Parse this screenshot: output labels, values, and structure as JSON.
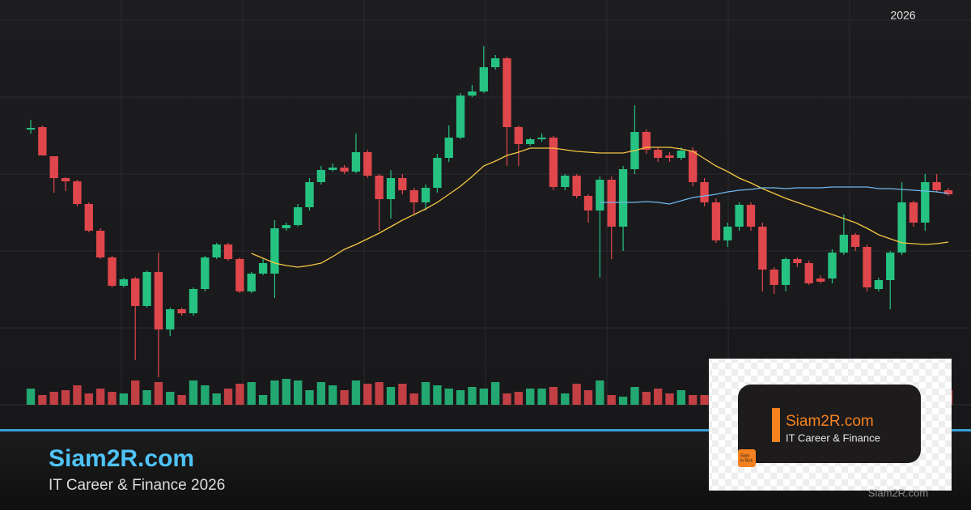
{
  "header": {
    "year": "2026"
  },
  "branding": {
    "title": "Siam2R.com",
    "subtitle": "IT Career & Finance 2026"
  },
  "logo": {
    "title": "Siam2R.com",
    "subtitle": "IT Career & Finance",
    "icon_lines": [
      "Siam",
      "to Rich"
    ],
    "watermark": "Siam2R.com"
  },
  "chart_data": {
    "type": "candlestick",
    "up_color": "#26c281",
    "down_color": "#e0474c",
    "grid": true,
    "ylim": [
      0,
      475
    ],
    "volume_ylim": [
      0,
      40
    ],
    "open": [
      340,
      343,
      307,
      280,
      276,
      248,
      215,
      182,
      147,
      156,
      122,
      164,
      93,
      118,
      113,
      143,
      182,
      198,
      180,
      140,
      162,
      162,
      218,
      222,
      244,
      275,
      290,
      293,
      288,
      312,
      283,
      254,
      280,
      265,
      250,
      268,
      305,
      330,
      382,
      387,
      417,
      428,
      343,
      322,
      328,
      330,
      269,
      283,
      258,
      240,
      278,
      220,
      291,
      337,
      315,
      308,
      305,
      314,
      275,
      250,
      203,
      220,
      247,
      220,
      167,
      148,
      180,
      175,
      156,
      156,
      188,
      210,
      195,
      143,
      154,
      188,
      250,
      225,
      275,
      265
    ],
    "close": [
      342,
      308,
      280,
      276,
      248,
      215,
      182,
      147,
      155,
      122,
      164,
      93,
      118,
      113,
      143,
      182,
      198,
      180,
      140,
      162,
      175,
      218,
      222,
      244,
      275,
      290,
      293,
      288,
      312,
      283,
      254,
      280,
      265,
      250,
      268,
      305,
      330,
      382,
      387,
      417,
      428,
      343,
      322,
      328,
      330,
      269,
      283,
      258,
      240,
      278,
      220,
      291,
      337,
      315,
      305,
      305,
      314,
      275,
      250,
      203,
      220,
      247,
      220,
      167,
      148,
      180,
      175,
      150,
      152,
      188,
      210,
      195,
      145,
      154,
      188,
      250,
      225,
      275,
      265,
      260
    ],
    "high": [
      352,
      345,
      307,
      281,
      278,
      250,
      218,
      184,
      157,
      158,
      166,
      188,
      120,
      120,
      145,
      184,
      200,
      200,
      182,
      164,
      180,
      228,
      225,
      248,
      280,
      295,
      298,
      296,
      335,
      315,
      285,
      290,
      285,
      268,
      272,
      310,
      345,
      385,
      395,
      443,
      432,
      430,
      345,
      330,
      335,
      332,
      285,
      285,
      260,
      282,
      282,
      295,
      370,
      340,
      318,
      312,
      318,
      318,
      280,
      255,
      225,
      250,
      250,
      225,
      170,
      182,
      182,
      178,
      160,
      192,
      235,
      212,
      198,
      157,
      190,
      275,
      252,
      285,
      285,
      268
    ],
    "low": [
      335,
      308,
      262,
      264,
      245,
      213,
      180,
      145,
      145,
      55,
      120,
      34,
      85,
      110,
      110,
      140,
      180,
      178,
      138,
      138,
      160,
      132,
      215,
      220,
      240,
      272,
      288,
      285,
      286,
      280,
      215,
      230,
      260,
      235,
      240,
      262,
      300,
      328,
      380,
      385,
      414,
      295,
      295,
      320,
      325,
      265,
      265,
      255,
      225,
      157,
      180,
      190,
      285,
      310,
      300,
      300,
      302,
      270,
      245,
      200,
      195,
      215,
      215,
      140,
      137,
      140,
      170,
      148,
      150,
      150,
      185,
      190,
      140,
      140,
      118,
      185,
      220,
      215,
      262,
      258
    ],
    "volume": [
      20,
      12,
      16,
      18,
      24,
      14,
      20,
      16,
      14,
      30,
      18,
      28,
      16,
      12,
      30,
      24,
      14,
      20,
      26,
      28,
      12,
      30,
      32,
      30,
      18,
      28,
      24,
      18,
      30,
      26,
      28,
      22,
      26,
      14,
      28,
      24,
      20,
      18,
      22,
      20,
      28,
      14,
      16,
      20,
      20,
      22,
      14,
      26,
      18,
      30,
      12,
      10,
      22,
      16,
      20,
      14,
      18,
      12,
      12,
      14,
      18,
      20,
      14,
      16,
      24,
      12,
      20,
      18,
      16,
      22,
      18,
      14,
      20,
      24,
      16,
      22,
      18,
      24,
      20,
      18
    ],
    "moving_averages": [
      {
        "color": "#f5c542",
        "values": [
          null,
          null,
          null,
          null,
          null,
          null,
          null,
          null,
          null,
          null,
          null,
          null,
          null,
          null,
          null,
          null,
          null,
          null,
          null,
          187,
          181,
          175,
          172,
          170,
          172,
          175,
          183,
          192,
          198,
          205,
          212,
          220,
          228,
          235,
          242,
          250,
          260,
          270,
          282,
          295,
          301,
          308,
          312,
          317,
          317,
          317,
          315,
          313,
          312,
          311,
          311,
          311,
          314,
          318,
          318,
          318,
          316,
          313,
          304,
          295,
          288,
          280,
          274,
          267,
          261,
          255,
          250,
          245,
          240,
          235,
          230,
          225,
          218,
          210,
          205,
          200,
          199,
          198,
          199,
          201
        ]
      },
      {
        "color": "#6fb7f0",
        "values": [
          null,
          null,
          null,
          null,
          null,
          null,
          null,
          null,
          null,
          null,
          null,
          null,
          null,
          null,
          null,
          null,
          null,
          null,
          null,
          null,
          null,
          null,
          null,
          null,
          null,
          null,
          null,
          null,
          null,
          null,
          null,
          null,
          null,
          null,
          null,
          null,
          null,
          null,
          null,
          null,
          null,
          null,
          null,
          null,
          null,
          null,
          null,
          null,
          null,
          250,
          250,
          250,
          250,
          251,
          250,
          248,
          252,
          256,
          258,
          260,
          263,
          265,
          266,
          268,
          268,
          267,
          268,
          268,
          268,
          269,
          269,
          269,
          269,
          267,
          267,
          266,
          265,
          264,
          263,
          261
        ]
      }
    ]
  }
}
